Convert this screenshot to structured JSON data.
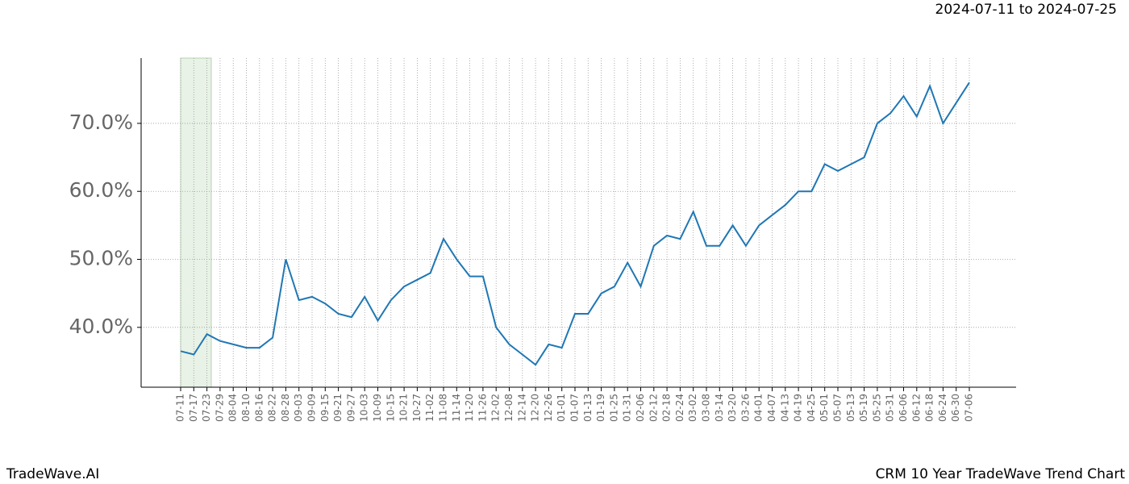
{
  "chart_data": {
    "type": "line",
    "title": "CRM 10 Year TradeWave Trend Chart",
    "subtitle": "2024-07-11 to 2024-07-25",
    "source": "TradeWave.AI",
    "categories": [
      "07-11",
      "07-17",
      "07-23",
      "07-29",
      "08-04",
      "08-10",
      "08-16",
      "08-22",
      "08-28",
      "09-03",
      "09-09",
      "09-15",
      "09-21",
      "09-27",
      "10-03",
      "10-09",
      "10-15",
      "10-21",
      "10-27",
      "11-02",
      "11-08",
      "11-14",
      "11-20",
      "11-26",
      "12-02",
      "12-08",
      "12-14",
      "12-20",
      "12-26",
      "01-01",
      "01-07",
      "01-13",
      "01-19",
      "01-25",
      "01-31",
      "02-06",
      "02-12",
      "02-18",
      "02-24",
      "03-02",
      "03-08",
      "03-14",
      "03-20",
      "03-26",
      "04-01",
      "04-07",
      "04-13",
      "04-19",
      "04-25",
      "05-01",
      "05-07",
      "05-13",
      "05-19",
      "05-25",
      "05-31",
      "06-06",
      "06-12",
      "06-18",
      "06-24",
      "06-30",
      "07-06"
    ],
    "series": [
      {
        "name": "CRM",
        "color": "#1f77b4",
        "values": [
          36.5,
          36,
          39,
          38,
          37.5,
          37,
          37,
          38.5,
          50,
          44,
          44.5,
          43.5,
          42,
          41.5,
          44.5,
          41,
          44,
          46,
          47,
          48,
          53,
          50,
          47.5,
          47.5,
          40,
          37.5,
          36,
          34.5,
          37.5,
          37,
          42,
          42,
          45,
          46,
          49.5,
          46,
          52,
          53.5,
          53,
          57,
          52,
          52,
          55,
          52,
          55,
          56.5,
          58,
          60,
          60,
          64,
          63,
          64,
          65,
          70,
          71.5,
          74,
          71,
          75.5,
          70,
          73,
          76
        ]
      }
    ],
    "ylim": [
      31.2,
      79.6
    ],
    "yticks": [
      {
        "value": 40,
        "label": "40.0%"
      },
      {
        "value": 50,
        "label": "50.0%"
      },
      {
        "value": 60,
        "label": "60.0%"
      },
      {
        "value": 70,
        "label": "70.0%"
      }
    ],
    "grid": true
  }
}
